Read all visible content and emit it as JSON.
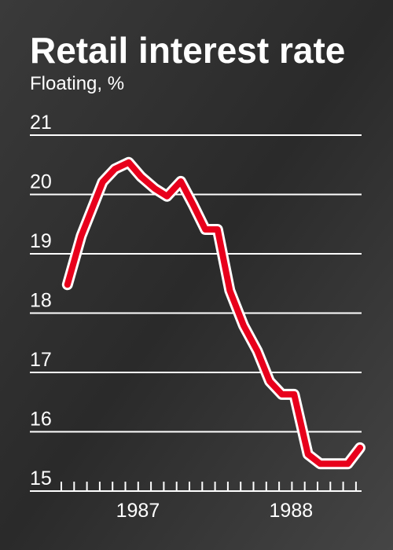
{
  "chart_data": {
    "type": "line",
    "title": "Retail interest rate",
    "subtitle": "Floating, %",
    "x": [
      1986.54,
      1986.63,
      1986.77,
      1986.85,
      1986.94,
      1987.02,
      1987.11,
      1987.19,
      1987.28,
      1987.36,
      1987.44,
      1987.52,
      1987.6,
      1987.69,
      1987.78,
      1987.86,
      1987.94,
      1988.02,
      1988.11,
      1988.19,
      1988.28,
      1988.37,
      1988.45
    ],
    "series": [
      {
        "color": "#e8001c",
        "values": [
          18.48,
          19.3,
          20.21,
          20.43,
          20.54,
          20.3,
          20.1,
          19.97,
          20.22,
          19.83,
          19.41,
          19.41,
          18.38,
          17.79,
          17.36,
          16.85,
          16.63,
          16.63,
          15.62,
          15.46,
          15.46,
          15.46,
          15.73
        ]
      }
    ],
    "xlim": [
      1986.5,
      1988.46
    ],
    "xticks": [
      {
        "value": 1987,
        "label": "1987"
      },
      {
        "value": 1988,
        "label": "1988"
      }
    ],
    "ylim": [
      15,
      21
    ],
    "yticks": [
      15,
      16,
      17,
      18,
      19,
      20,
      21
    ],
    "grid": true
  }
}
